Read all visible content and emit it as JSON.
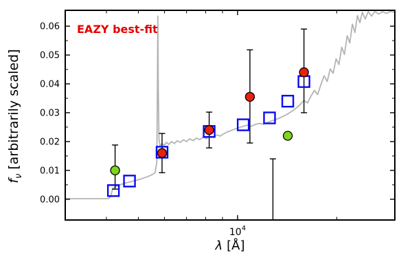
{
  "chart_data": {
    "type": "line",
    "description": "SED best-fit template spectrum with observed and model photometry",
    "annotation": "EAZY best-fit",
    "annotation_color": "#e60000",
    "xlabel": {
      "symbol": "λ",
      "rest": "[Å]"
    },
    "ylabel": {
      "symbol": "f",
      "sub": "ν",
      "rest": "[arbitrarily scaled]"
    },
    "xscale": "log",
    "xlim": [
      3000,
      30000
    ],
    "ylim": [
      -0.0072,
      0.0655
    ],
    "xtick_major": {
      "value": 10000,
      "base": "10",
      "exp": "4"
    },
    "xticks_minor": [
      4000,
      5000,
      6000,
      7000,
      8000,
      9000,
      20000
    ],
    "yticks": {
      "values": [
        0,
        0.01,
        0.02,
        0.03,
        0.04,
        0.05,
        0.06
      ],
      "labels": [
        "0.00",
        "0.01",
        "0.02",
        "0.03",
        "0.04",
        "0.05",
        "0.06"
      ]
    },
    "yticks_minor": [
      0.005,
      0.015,
      0.025,
      0.035,
      0.045,
      0.055
    ],
    "colors": {
      "spectrum": "#b3b3b3",
      "model_square": "#0a0af2",
      "observed": "#e8210f",
      "flagged": "#80d41e",
      "errorbar": "#000000"
    },
    "spectrum": {
      "name": "best-fit template spectrum",
      "points": [
        [
          3000,
          0.0002
        ],
        [
          3400,
          0.0002
        ],
        [
          3800,
          0.0002
        ],
        [
          4050,
          0.0002
        ],
        [
          4120,
          0.0008
        ],
        [
          4180,
          0.0038
        ],
        [
          4300,
          0.0046
        ],
        [
          4450,
          0.0052
        ],
        [
          4600,
          0.0057
        ],
        [
          4750,
          0.0061
        ],
        [
          4900,
          0.0065
        ],
        [
          5050,
          0.0069
        ],
        [
          5200,
          0.0074
        ],
        [
          5350,
          0.0079
        ],
        [
          5500,
          0.0085
        ],
        [
          5620,
          0.0092
        ],
        [
          5690,
          0.013
        ],
        [
          5715,
          0.042
        ],
        [
          5730,
          0.0635
        ],
        [
          5748,
          0.039
        ],
        [
          5775,
          0.021
        ],
        [
          5820,
          0.0185
        ],
        [
          5900,
          0.0193
        ],
        [
          5990,
          0.0187
        ],
        [
          6080,
          0.0197
        ],
        [
          6180,
          0.019
        ],
        [
          6300,
          0.02
        ],
        [
          6430,
          0.0193
        ],
        [
          6560,
          0.0203
        ],
        [
          6700,
          0.0197
        ],
        [
          6850,
          0.0206
        ],
        [
          7000,
          0.02
        ],
        [
          7160,
          0.0209
        ],
        [
          7330,
          0.0203
        ],
        [
          7500,
          0.0212
        ],
        [
          7680,
          0.0207
        ],
        [
          7860,
          0.0215
        ],
        [
          8050,
          0.021
        ],
        [
          8250,
          0.0219
        ],
        [
          8450,
          0.0214
        ],
        [
          8650,
          0.0223
        ],
        [
          8860,
          0.0219
        ],
        [
          9080,
          0.0227
        ],
        [
          9300,
          0.0233
        ],
        [
          9550,
          0.0238
        ],
        [
          9800,
          0.0243
        ],
        [
          10100,
          0.0248
        ],
        [
          10400,
          0.0253
        ],
        [
          10700,
          0.0257
        ],
        [
          11000,
          0.0253
        ],
        [
          11300,
          0.0259
        ],
        [
          11650,
          0.0263
        ],
        [
          12000,
          0.026
        ],
        [
          12350,
          0.0267
        ],
        [
          12700,
          0.0272
        ],
        [
          13100,
          0.0277
        ],
        [
          13500,
          0.0283
        ],
        [
          13900,
          0.029
        ],
        [
          14300,
          0.0298
        ],
        [
          14700,
          0.0307
        ],
        [
          15100,
          0.0317
        ],
        [
          15500,
          0.0329
        ],
        [
          15900,
          0.0342
        ],
        [
          16300,
          0.0334
        ],
        [
          16700,
          0.0358
        ],
        [
          17100,
          0.0377
        ],
        [
          17500,
          0.0363
        ],
        [
          17900,
          0.0398
        ],
        [
          18300,
          0.0428
        ],
        [
          18700,
          0.0408
        ],
        [
          19100,
          0.0452
        ],
        [
          19500,
          0.0437
        ],
        [
          19900,
          0.0487
        ],
        [
          20300,
          0.0467
        ],
        [
          20700,
          0.0527
        ],
        [
          21100,
          0.0502
        ],
        [
          21500,
          0.0567
        ],
        [
          21900,
          0.0542
        ],
        [
          22300,
          0.0607
        ],
        [
          22700,
          0.0578
        ],
        [
          23100,
          0.0637
        ],
        [
          23500,
          0.0612
        ],
        [
          23900,
          0.0648
        ],
        [
          24400,
          0.0625
        ],
        [
          24900,
          0.065
        ],
        [
          25500,
          0.0635
        ],
        [
          26100,
          0.0651
        ],
        [
          26800,
          0.0642
        ],
        [
          27500,
          0.065
        ],
        [
          28300,
          0.0644
        ],
        [
          29100,
          0.0651
        ],
        [
          30000,
          0.0648
        ]
      ]
    },
    "series": [
      {
        "name": "model photometry",
        "marker": "open-square",
        "color": "#0a0af2",
        "points": [
          {
            "x": 4200,
            "y": 0.003
          },
          {
            "x": 4700,
            "y": 0.0063
          },
          {
            "x": 5900,
            "y": 0.0163
          },
          {
            "x": 8200,
            "y": 0.0235
          },
          {
            "x": 10400,
            "y": 0.0258
          },
          {
            "x": 12500,
            "y": 0.0282
          },
          {
            "x": 14200,
            "y": 0.034
          },
          {
            "x": 15900,
            "y": 0.0408
          }
        ]
      },
      {
        "name": "observed photometry",
        "marker": "filled-circle",
        "color": "#e8210f",
        "points": [
          {
            "x": 5900,
            "y": 0.016,
            "ylo": 0.0092,
            "yhi": 0.0228
          },
          {
            "x": 8200,
            "y": 0.024,
            "ylo": 0.0178,
            "yhi": 0.0302
          },
          {
            "x": 10900,
            "y": 0.0355,
            "ylo": 0.0195,
            "yhi": 0.0518
          },
          {
            "x": 15900,
            "y": 0.044,
            "ylo": 0.03,
            "yhi": 0.059
          }
        ]
      },
      {
        "name": "flagged photometry",
        "marker": "filled-circle",
        "color": "#80d41e",
        "points": [
          {
            "x": 4250,
            "y": 0.01,
            "ylo": 0.0035,
            "yhi": 0.0188
          },
          {
            "x": 14200,
            "y": 0.022
          }
        ]
      }
    ],
    "limit_bar": {
      "x": 12800,
      "top": 0.014,
      "bottom": -0.0072,
      "cap_top": true
    }
  }
}
